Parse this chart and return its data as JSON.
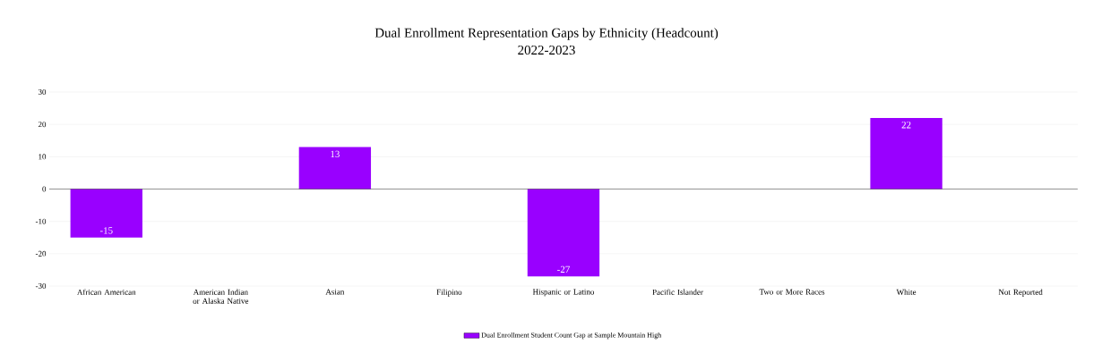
{
  "chart_data": {
    "type": "bar",
    "title": "Dual Enrollment Representation Gaps by Ethnicity (Headcount)",
    "subtitle": "2022-2023",
    "categories": [
      "African American",
      "American Indian or Alaska Native",
      "Asian",
      "Filipino",
      "Hispanic or Latino",
      "Pacific Islander",
      "Two or More Races",
      "White",
      "Not Reported"
    ],
    "series": [
      {
        "name": "Dual Enrollment Student Count Gap at Sample Mountain High",
        "color": "#9900ff",
        "values": [
          -15,
          null,
          13,
          null,
          -27,
          null,
          null,
          22,
          null
        ],
        "value_labels": [
          "-15",
          null,
          "13",
          null,
          "-27",
          null,
          null,
          "22",
          null
        ]
      }
    ],
    "ylim": [
      -30,
      30
    ],
    "yticks": [
      -30,
      -20,
      -10,
      0,
      10,
      20,
      30
    ],
    "grid": "y",
    "legend": "bottom"
  }
}
